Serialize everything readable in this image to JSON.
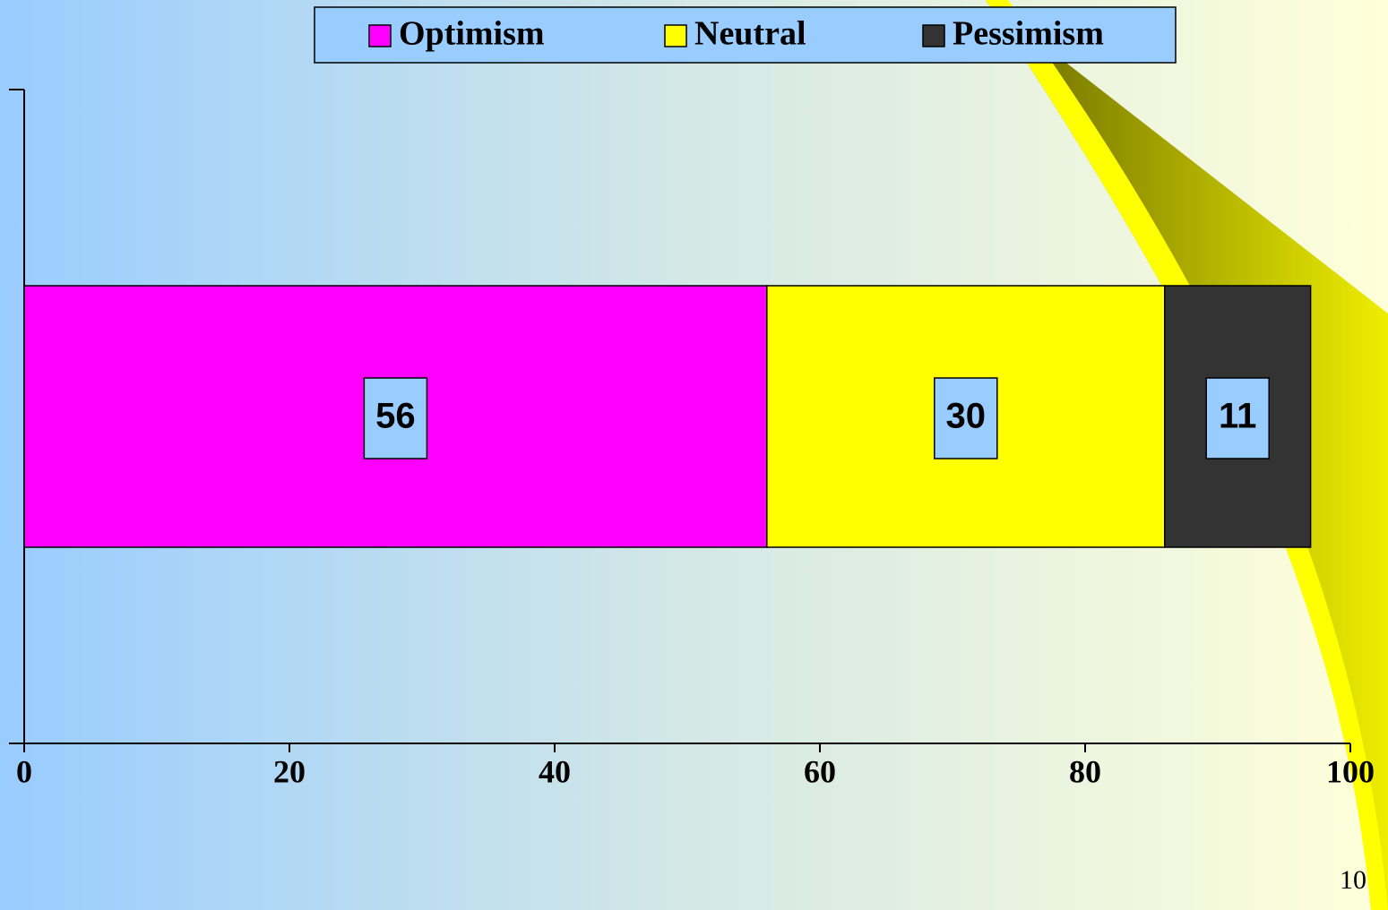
{
  "chart_data": {
    "type": "bar",
    "orientation": "horizontal",
    "stacked": true,
    "categories": [
      null
    ],
    "series": [
      {
        "name": "Optimism",
        "color": "#ff00ff",
        "values": [
          56
        ]
      },
      {
        "name": "Neutral",
        "color": "#ffff00",
        "values": [
          30
        ]
      },
      {
        "name": "Pessimism",
        "color": "#333333",
        "values": [
          11
        ]
      }
    ],
    "xlim": [
      0,
      100
    ],
    "xticks": [
      0,
      20,
      40,
      60,
      80,
      100
    ],
    "grid": false,
    "legend": "top"
  },
  "slide": {
    "page_number": "10"
  }
}
